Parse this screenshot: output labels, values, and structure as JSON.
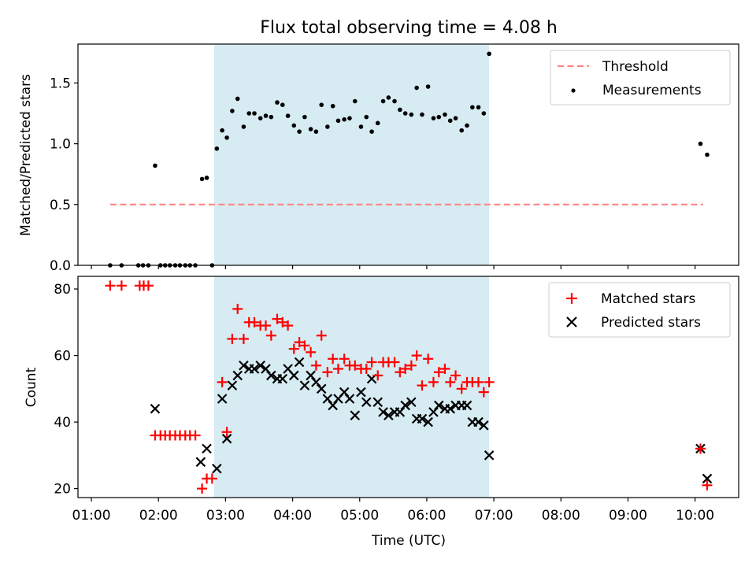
{
  "title": "Flux total observing time = 4.08 h",
  "colors": {
    "threshold": "#ff7f7f",
    "measurement": "#000000",
    "matched": "#ff0000",
    "predicted": "#000000",
    "span": "#add8e6"
  },
  "chart_data": [
    {
      "type": "scatter",
      "ylabel": "Matched/Predicted stars",
      "xlim": [
        0.8,
        10.65
      ],
      "ylim": [
        0,
        1.82
      ],
      "yticks": [
        "0.0",
        "0.5",
        "1.0",
        "1.5"
      ],
      "ytick_values": [
        0,
        0.5,
        1.0,
        1.5
      ],
      "shaded_span": [
        2.83,
        6.93
      ],
      "legend": {
        "placement": "top-right",
        "entries": [
          "Threshold",
          "Measurements"
        ]
      },
      "threshold": {
        "name": "Threshold",
        "x": [
          1.28,
          10.12
        ],
        "y": 0.5
      },
      "series": [
        {
          "name": "Measurements",
          "x": [
            1.28,
            1.45,
            1.7,
            1.77,
            1.85,
            1.95,
            2.03,
            2.1,
            2.17,
            2.25,
            2.32,
            2.4,
            2.47,
            2.55,
            2.65,
            2.72,
            2.8,
            2.87,
            2.95,
            3.02,
            3.1,
            3.18,
            3.27,
            3.35,
            3.43,
            3.52,
            3.6,
            3.68,
            3.77,
            3.85,
            3.93,
            4.02,
            4.1,
            4.18,
            4.27,
            4.35,
            4.43,
            4.52,
            4.6,
            4.68,
            4.77,
            4.85,
            4.93,
            5.02,
            5.1,
            5.18,
            5.27,
            5.35,
            5.43,
            5.52,
            5.6,
            5.68,
            5.77,
            5.85,
            5.93,
            6.02,
            6.1,
            6.18,
            6.27,
            6.35,
            6.43,
            6.52,
            6.6,
            6.68,
            6.77,
            6.85,
            6.93,
            10.08,
            10.18
          ],
          "y": [
            0,
            0,
            0,
            0,
            0,
            0.82,
            0,
            0,
            0,
            0,
            0,
            0,
            0,
            0,
            0.71,
            0.72,
            0,
            0.96,
            1.11,
            1.05,
            1.27,
            1.37,
            1.14,
            1.25,
            1.25,
            1.21,
            1.23,
            1.22,
            1.34,
            1.32,
            1.23,
            1.15,
            1.1,
            1.22,
            1.12,
            1.1,
            1.32,
            1.14,
            1.31,
            1.19,
            1.2,
            1.21,
            1.35,
            1.14,
            1.22,
            1.1,
            1.17,
            1.35,
            1.38,
            1.35,
            1.28,
            1.25,
            1.24,
            1.46,
            1.24,
            1.47,
            1.21,
            1.22,
            1.24,
            1.19,
            1.21,
            1.11,
            1.15,
            1.3,
            1.3,
            1.25,
            1.74,
            1.0,
            0.91
          ]
        }
      ]
    },
    {
      "type": "scatter",
      "xlabel": "Time (UTC)",
      "ylabel": "Count",
      "xlim": [
        0.8,
        10.65
      ],
      "ylim": [
        17.3,
        83.8
      ],
      "yticks": [
        "20",
        "40",
        "60",
        "80"
      ],
      "ytick_values": [
        20,
        40,
        60,
        80
      ],
      "xticks": [
        "01:00",
        "02:00",
        "03:00",
        "04:00",
        "05:00",
        "06:00",
        "07:00",
        "08:00",
        "09:00",
        "10:00"
      ],
      "xtick_values": [
        1,
        2,
        3,
        4,
        5,
        6,
        7,
        8,
        9,
        10
      ],
      "shaded_span": [
        2.83,
        6.93
      ],
      "legend": {
        "placement": "top-right",
        "entries": [
          "Matched stars",
          "Predicted stars"
        ]
      },
      "series": [
        {
          "name": "Matched stars",
          "marker": "+",
          "x": [
            1.28,
            1.45,
            1.72,
            1.78,
            1.85,
            1.95,
            2.03,
            2.1,
            2.17,
            2.25,
            2.32,
            2.4,
            2.47,
            2.55,
            2.65,
            2.72,
            2.8,
            2.95,
            3.02,
            3.1,
            3.18,
            3.27,
            3.35,
            3.43,
            3.52,
            3.6,
            3.68,
            3.77,
            3.85,
            3.93,
            4.02,
            4.1,
            4.18,
            4.27,
            4.35,
            4.43,
            4.52,
            4.6,
            4.68,
            4.77,
            4.85,
            4.93,
            5.02,
            5.1,
            5.18,
            5.27,
            5.35,
            5.43,
            5.52,
            5.6,
            5.68,
            5.77,
            5.85,
            5.93,
            6.02,
            6.1,
            6.18,
            6.27,
            6.35,
            6.43,
            6.52,
            6.6,
            6.68,
            6.77,
            6.85,
            6.93,
            10.08,
            10.18
          ],
          "y": [
            81,
            81,
            81,
            81,
            81,
            36,
            36,
            36,
            36,
            36,
            36,
            36,
            36,
            36,
            20,
            23,
            23,
            52,
            37,
            65,
            74,
            65,
            70,
            70,
            69,
            69,
            66,
            71,
            70,
            69,
            62,
            64,
            63,
            61,
            57,
            66,
            55,
            59,
            56,
            59,
            57,
            57,
            56,
            56,
            58,
            54,
            58,
            58,
            58,
            55,
            56,
            57,
            60,
            51,
            59,
            52,
            55,
            56,
            52,
            54,
            50,
            52,
            52,
            52,
            49,
            52,
            32,
            21
          ]
        },
        {
          "name": "Predicted stars",
          "marker": "x",
          "x": [
            1.95,
            2.63,
            2.72,
            2.87,
            2.95,
            3.02,
            3.1,
            3.18,
            3.27,
            3.35,
            3.43,
            3.52,
            3.6,
            3.68,
            3.77,
            3.85,
            3.93,
            4.02,
            4.1,
            4.18,
            4.27,
            4.35,
            4.43,
            4.52,
            4.6,
            4.68,
            4.77,
            4.85,
            4.93,
            5.02,
            5.1,
            5.18,
            5.27,
            5.35,
            5.43,
            5.52,
            5.6,
            5.68,
            5.77,
            5.85,
            5.93,
            6.02,
            6.1,
            6.18,
            6.27,
            6.35,
            6.43,
            6.52,
            6.6,
            6.68,
            6.77,
            6.85,
            6.93,
            10.08,
            10.18
          ],
          "y": [
            44,
            28,
            32,
            26,
            47,
            35,
            51,
            54,
            57,
            56,
            56,
            57,
            56,
            54,
            53,
            53,
            56,
            54,
            58,
            51,
            54,
            52,
            50,
            47,
            45,
            47,
            49,
            47,
            42,
            49,
            46,
            53,
            46,
            43,
            42,
            43,
            43,
            45,
            46,
            41,
            41,
            40,
            43,
            45,
            44,
            44,
            45,
            45,
            45,
            40,
            40,
            39,
            30,
            32,
            23
          ]
        }
      ]
    }
  ]
}
